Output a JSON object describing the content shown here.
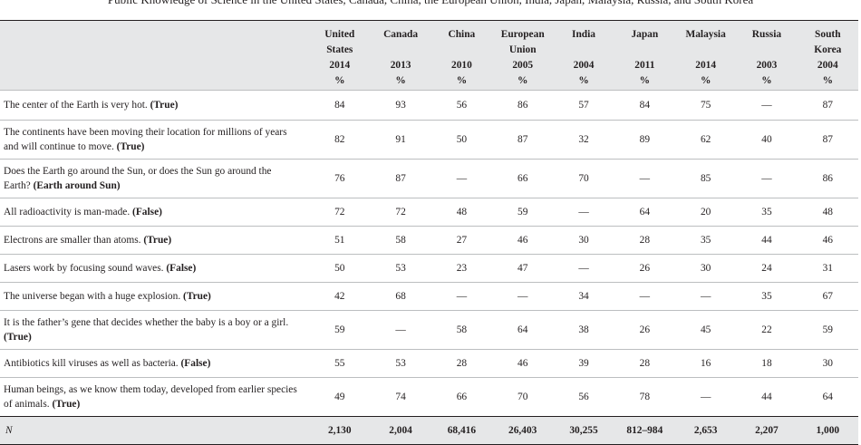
{
  "caption": "Public Knowledge of Science in the United States, Canada, China, the European Union, India, Japan, Malaysia, Russia, and South Korea",
  "columns": [
    {
      "country": [
        "United",
        "States"
      ],
      "year": "2014",
      "unit": "%"
    },
    {
      "country": [
        "Canada"
      ],
      "year": "2013",
      "unit": "%"
    },
    {
      "country": [
        "China"
      ],
      "year": "2010",
      "unit": "%"
    },
    {
      "country": [
        "European",
        "Union"
      ],
      "year": "2005",
      "unit": "%"
    },
    {
      "country": [
        "India"
      ],
      "year": "2004",
      "unit": "%"
    },
    {
      "country": [
        "Japan"
      ],
      "year": "2011",
      "unit": "%"
    },
    {
      "country": [
        "Malaysia"
      ],
      "year": "2014",
      "unit": "%"
    },
    {
      "country": [
        "Russia"
      ],
      "year": "2003",
      "unit": "%"
    },
    {
      "country": [
        "South",
        "Korea"
      ],
      "year": "2004",
      "unit": "%"
    }
  ],
  "rows": [
    {
      "question": "The center of the Earth is very hot.",
      "answer": "(True)",
      "values": [
        "84",
        "93",
        "56",
        "86",
        "57",
        "84",
        "75",
        "—",
        "87"
      ]
    },
    {
      "question": "The continents have been moving their location for millions of years and will continue to move.",
      "answer": "(True)",
      "values": [
        "82",
        "91",
        "50",
        "87",
        "32",
        "89",
        "62",
        "40",
        "87"
      ]
    },
    {
      "question": "Does the Earth go around the Sun, or does the Sun go around the Earth?",
      "answer": "(Earth around Sun)",
      "values": [
        "76",
        "87",
        "—",
        "66",
        "70",
        "—",
        "85",
        "—",
        "86"
      ]
    },
    {
      "question": "All radioactivity is man-made.",
      "answer": "(False)",
      "values": [
        "72",
        "72",
        "48",
        "59",
        "—",
        "64",
        "20",
        "35",
        "48"
      ]
    },
    {
      "question": "Electrons are smaller than atoms.",
      "answer": "(True)",
      "values": [
        "51",
        "58",
        "27",
        "46",
        "30",
        "28",
        "35",
        "44",
        "46"
      ]
    },
    {
      "question": "Lasers work by focusing sound waves.",
      "answer": "(False)",
      "values": [
        "50",
        "53",
        "23",
        "47",
        "—",
        "26",
        "30",
        "24",
        "31"
      ]
    },
    {
      "question": "The universe began with a huge explosion.",
      "answer": "(True)",
      "values": [
        "42",
        "68",
        "—",
        "—",
        "34",
        "—",
        "—",
        "35",
        "67"
      ]
    },
    {
      "question": "It is the father’s gene that decides whether the baby is a boy or a girl.",
      "answer": "(True)",
      "values": [
        "59",
        "—",
        "58",
        "64",
        "38",
        "26",
        "45",
        "22",
        "59"
      ]
    },
    {
      "question": "Antibiotics kill viruses as well as bacteria.",
      "answer": "(False)",
      "values": [
        "55",
        "53",
        "28",
        "46",
        "39",
        "28",
        "16",
        "18",
        "30"
      ]
    },
    {
      "question": "Human beings, as we know them today, developed from earlier species of animals.",
      "answer": "(True)",
      "values": [
        "49",
        "74",
        "66",
        "70",
        "56",
        "78",
        "—",
        "44",
        "64"
      ]
    }
  ],
  "n_row": {
    "label": "N",
    "values": [
      "2,130",
      "2,004",
      "68,416",
      "26,403",
      "30,255",
      "812–984",
      "2,653",
      "2,207",
      "1,000"
    ]
  }
}
